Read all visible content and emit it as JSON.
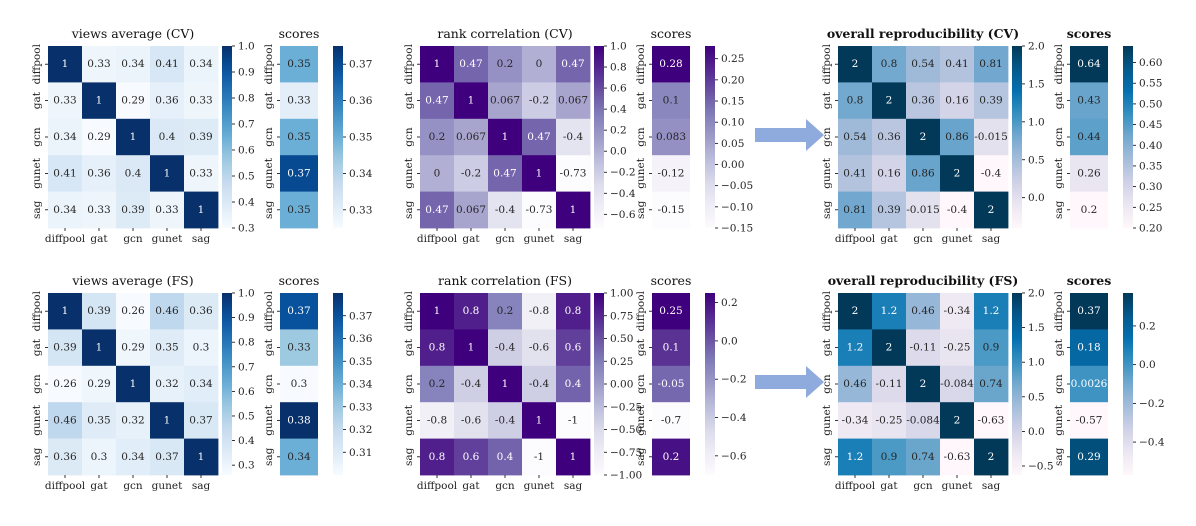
{
  "figure": {
    "models": [
      "diffpool",
      "gat",
      "gcn",
      "gunet",
      "sag"
    ],
    "scores_title": "scores"
  },
  "chart_data": [
    {
      "type": "heatmap",
      "title": "views average (CV)",
      "colormap": "Blues",
      "vmin": 0.3,
      "vmax": 1.0,
      "colorbar_ticks": [
        0.3,
        0.4,
        0.5,
        0.6,
        0.7,
        0.8,
        0.9,
        1.0
      ],
      "colorbar_tick_labels": [
        "0.3",
        "0.4",
        "0.5",
        "0.6",
        "0.7",
        "0.8",
        "0.9",
        "1.0"
      ],
      "x_categories": [
        "diffpool",
        "gat",
        "gcn",
        "gunet",
        "sag"
      ],
      "y_categories": [
        "diffpool",
        "gat",
        "gcn",
        "gunet",
        "sag"
      ],
      "values": [
        [
          1,
          0.33,
          0.34,
          0.41,
          0.34
        ],
        [
          0.33,
          1,
          0.29,
          0.36,
          0.33
        ],
        [
          0.34,
          0.29,
          1,
          0.4,
          0.39
        ],
        [
          0.41,
          0.36,
          0.4,
          1,
          0.33
        ],
        [
          0.34,
          0.33,
          0.39,
          0.33,
          1
        ]
      ],
      "labels": [
        [
          "1",
          "0.33",
          "0.34",
          "0.41",
          "0.34"
        ],
        [
          "0.33",
          "1",
          "0.29",
          "0.36",
          "0.33"
        ],
        [
          "0.34",
          "0.29",
          "1",
          "0.4",
          "0.39"
        ],
        [
          "0.41",
          "0.36",
          "0.4",
          "1",
          "0.33"
        ],
        [
          "0.34",
          "0.33",
          "0.39",
          "0.33",
          "1"
        ]
      ]
    },
    {
      "type": "heatmap",
      "title": "scores",
      "colormap": "Blues",
      "vmin": 0.325,
      "vmax": 0.375,
      "colorbar_ticks": [
        0.33,
        0.34,
        0.35,
        0.36,
        0.37
      ],
      "colorbar_tick_labels": [
        "0.33",
        "0.34",
        "0.35",
        "0.36",
        "0.37"
      ],
      "y_categories": [
        "diffpool",
        "gat",
        "gcn",
        "gunet",
        "sag"
      ],
      "values": [
        0.35,
        0.33,
        0.35,
        0.37,
        0.35
      ],
      "labels": [
        "0.35",
        "0.33",
        "0.35",
        "0.37",
        "0.35"
      ]
    },
    {
      "type": "heatmap",
      "title": "rank correlation (CV)",
      "colormap": "Purples",
      "vmin": -0.73,
      "vmax": 1.0,
      "colorbar_ticks": [
        -0.6,
        -0.4,
        -0.2,
        0.0,
        0.2,
        0.4,
        0.6,
        0.8,
        1.0
      ],
      "colorbar_tick_labels": [
        "−0.6",
        "−0.4",
        "−0.2",
        "0.0",
        "0.2",
        "0.4",
        "0.6",
        "0.8",
        "1.0"
      ],
      "x_categories": [
        "diffpool",
        "gat",
        "gcn",
        "gunet",
        "sag"
      ],
      "y_categories": [
        "diffpool",
        "gat",
        "gcn",
        "gunet",
        "sag"
      ],
      "values": [
        [
          1,
          0.47,
          0.2,
          0,
          0.47
        ],
        [
          0.47,
          1,
          0.067,
          -0.2,
          0.067
        ],
        [
          0.2,
          0.067,
          1,
          0.47,
          -0.4
        ],
        [
          0,
          -0.2,
          0.47,
          1,
          -0.73
        ],
        [
          0.47,
          0.067,
          -0.4,
          -0.73,
          1
        ]
      ],
      "labels": [
        [
          "1",
          "0.47",
          "0.2",
          "0",
          "0.47"
        ],
        [
          "0.47",
          "1",
          "0.067",
          "-0.2",
          "0.067"
        ],
        [
          "0.2",
          "0.067",
          "1",
          "0.47",
          "-0.4"
        ],
        [
          "0",
          "-0.2",
          "0.47",
          "1",
          "-0.73"
        ],
        [
          "0.47",
          "0.067",
          "-0.4",
          "-0.73",
          "1"
        ]
      ]
    },
    {
      "type": "heatmap",
      "title": "scores",
      "colormap": "Purples",
      "vmin": -0.15,
      "vmax": 0.28,
      "colorbar_ticks": [
        -0.15,
        -0.1,
        -0.05,
        0.0,
        0.05,
        0.1,
        0.15,
        0.2,
        0.25
      ],
      "colorbar_tick_labels": [
        "−0.15",
        "−0.10",
        "−0.05",
        "0.00",
        "0.05",
        "0.10",
        "0.15",
        "0.20",
        "0.25"
      ],
      "y_categories": [
        "diffpool",
        "gat",
        "gcn",
        "gunet",
        "sag"
      ],
      "values": [
        0.28,
        0.1,
        0.083,
        -0.12,
        -0.15
      ],
      "labels": [
        "0.28",
        "0.1",
        "0.083",
        "-0.12",
        "-0.15"
      ]
    },
    {
      "type": "heatmap",
      "title": "overall reproducibility (CV)",
      "colormap": "PuBu",
      "vmin": -0.4,
      "vmax": 2.0,
      "colorbar_ticks": [
        0.0,
        0.5,
        1.0,
        1.5,
        2.0
      ],
      "colorbar_tick_labels": [
        "0.0",
        "0.5",
        "1.0",
        "1.5",
        "2.0"
      ],
      "x_categories": [
        "diffpool",
        "gat",
        "gcn",
        "gunet",
        "sag"
      ],
      "y_categories": [
        "diffpool",
        "gat",
        "gcn",
        "gunet",
        "sag"
      ],
      "values": [
        [
          2,
          0.8,
          0.54,
          0.41,
          0.81
        ],
        [
          0.8,
          2,
          0.36,
          0.16,
          0.39
        ],
        [
          0.54,
          0.36,
          2,
          0.86,
          -0.015
        ],
        [
          0.41,
          0.16,
          0.86,
          2,
          -0.4
        ],
        [
          0.81,
          0.39,
          -0.015,
          -0.4,
          2
        ]
      ],
      "labels": [
        [
          "2",
          "0.8",
          "0.54",
          "0.41",
          "0.81"
        ],
        [
          "0.8",
          "2",
          "0.36",
          "0.16",
          "0.39"
        ],
        [
          "0.54",
          "0.36",
          "2",
          "0.86",
          "-0.015"
        ],
        [
          "0.41",
          "0.16",
          "0.86",
          "2",
          "-0.4"
        ],
        [
          "0.81",
          "0.39",
          "-0.015",
          "-0.4",
          "2"
        ]
      ]
    },
    {
      "type": "heatmap",
      "title": "scores",
      "colormap": "PuBu",
      "vmin": 0.2,
      "vmax": 0.64,
      "colorbar_ticks": [
        0.2,
        0.25,
        0.3,
        0.35,
        0.4,
        0.45,
        0.5,
        0.55,
        0.6
      ],
      "colorbar_tick_labels": [
        "0.20",
        "0.25",
        "0.30",
        "0.35",
        "0.40",
        "0.45",
        "0.50",
        "0.55",
        "0.60"
      ],
      "y_categories": [
        "diffpool",
        "gat",
        "gcn",
        "gunet",
        "sag"
      ],
      "values": [
        0.64,
        0.43,
        0.44,
        0.26,
        0.2
      ],
      "labels": [
        "0.64",
        "0.43",
        "0.44",
        "0.26",
        "0.2"
      ]
    },
    {
      "type": "heatmap",
      "title": "views average (FS)",
      "colormap": "Blues",
      "vmin": 0.26,
      "vmax": 1.0,
      "colorbar_ticks": [
        0.3,
        0.4,
        0.5,
        0.6,
        0.7,
        0.8,
        0.9,
        1.0
      ],
      "colorbar_tick_labels": [
        "0.3",
        "0.4",
        "0.5",
        "0.6",
        "0.7",
        "0.8",
        "0.9",
        "1.0"
      ],
      "x_categories": [
        "diffpool",
        "gat",
        "gcn",
        "gunet",
        "sag"
      ],
      "y_categories": [
        "diffpool",
        "gat",
        "gcn",
        "gunet",
        "sag"
      ],
      "values": [
        [
          1,
          0.39,
          0.26,
          0.46,
          0.36
        ],
        [
          0.39,
          1,
          0.29,
          0.35,
          0.3
        ],
        [
          0.26,
          0.29,
          1,
          0.32,
          0.34
        ],
        [
          0.46,
          0.35,
          0.32,
          1,
          0.37
        ],
        [
          0.36,
          0.3,
          0.34,
          0.37,
          1
        ]
      ],
      "labels": [
        [
          "1",
          "0.39",
          "0.26",
          "0.46",
          "0.36"
        ],
        [
          "0.39",
          "1",
          "0.29",
          "0.35",
          "0.3"
        ],
        [
          "0.26",
          "0.29",
          "1",
          "0.32",
          "0.34"
        ],
        [
          "0.46",
          "0.35",
          "0.32",
          "1",
          "0.37"
        ],
        [
          "0.36",
          "0.3",
          "0.34",
          "0.37",
          "1"
        ]
      ]
    },
    {
      "type": "heatmap",
      "title": "scores",
      "colormap": "Blues",
      "vmin": 0.3,
      "vmax": 0.38,
      "colorbar_ticks": [
        0.31,
        0.32,
        0.33,
        0.34,
        0.35,
        0.36,
        0.37
      ],
      "colorbar_tick_labels": [
        "0.31",
        "0.32",
        "0.33",
        "0.34",
        "0.35",
        "0.36",
        "0.37"
      ],
      "y_categories": [
        "diffpool",
        "gat",
        "gcn",
        "gunet",
        "sag"
      ],
      "values": [
        0.37,
        0.33,
        0.3,
        0.38,
        0.34
      ],
      "labels": [
        "0.37",
        "0.33",
        "0.3",
        "0.38",
        "0.34"
      ]
    },
    {
      "type": "heatmap",
      "title": "rank correlation (FS)",
      "colormap": "Purples",
      "vmin": -1.0,
      "vmax": 1.0,
      "colorbar_ticks": [
        -1.0,
        -0.75,
        -0.5,
        -0.25,
        0.0,
        0.25,
        0.5,
        0.75,
        1.0
      ],
      "colorbar_tick_labels": [
        "−1.00",
        "−0.75",
        "−0.50",
        "−0.25",
        "0.00",
        "0.25",
        "0.50",
        "0.75",
        "1.00"
      ],
      "x_categories": [
        "diffpool",
        "gat",
        "gcn",
        "gunet",
        "sag"
      ],
      "y_categories": [
        "diffpool",
        "gat",
        "gcn",
        "gunet",
        "sag"
      ],
      "values": [
        [
          1,
          0.8,
          0.2,
          -0.8,
          0.8
        ],
        [
          0.8,
          1,
          -0.4,
          -0.6,
          0.6
        ],
        [
          0.2,
          -0.4,
          1,
          -0.4,
          0.4
        ],
        [
          -0.8,
          -0.6,
          -0.4,
          1,
          -1
        ],
        [
          0.8,
          0.6,
          0.4,
          -1,
          1
        ]
      ],
      "labels": [
        [
          "1",
          "0.8",
          "0.2",
          "-0.8",
          "0.8"
        ],
        [
          "0.8",
          "1",
          "-0.4",
          "-0.6",
          "0.6"
        ],
        [
          "0.2",
          "-0.4",
          "1",
          "-0.4",
          "0.4"
        ],
        [
          "-0.8",
          "-0.6",
          "-0.4",
          "1",
          "-1"
        ],
        [
          "0.8",
          "0.6",
          "0.4",
          "-1",
          "1"
        ]
      ]
    },
    {
      "type": "heatmap",
      "title": "scores",
      "colormap": "Purples",
      "vmin": -0.7,
      "vmax": 0.25,
      "colorbar_ticks": [
        -0.6,
        -0.4,
        -0.2,
        0.0,
        0.2
      ],
      "colorbar_tick_labels": [
        "−0.6",
        "−0.4",
        "−0.2",
        "0.0",
        "0.2"
      ],
      "y_categories": [
        "diffpool",
        "gat",
        "gcn",
        "gunet",
        "sag"
      ],
      "values": [
        0.25,
        0.1,
        -0.05,
        -0.7,
        0.2
      ],
      "labels": [
        "0.25",
        "0.1",
        "-0.05",
        "-0.7",
        "0.2"
      ]
    },
    {
      "type": "heatmap",
      "title": "overall reproducibility (FS)",
      "colormap": "PuBu",
      "vmin": -0.63,
      "vmax": 2.0,
      "colorbar_ticks": [
        -0.5,
        0.0,
        0.5,
        1.0,
        1.5,
        2.0
      ],
      "colorbar_tick_labels": [
        "−0.5",
        "0.0",
        "0.5",
        "1.0",
        "1.5",
        "2.0"
      ],
      "x_categories": [
        "diffpool",
        "gat",
        "gcn",
        "gunet",
        "sag"
      ],
      "y_categories": [
        "diffpool",
        "gat",
        "gcn",
        "gunet",
        "sag"
      ],
      "values": [
        [
          2,
          1.2,
          0.46,
          -0.34,
          1.2
        ],
        [
          1.2,
          2,
          -0.11,
          -0.25,
          0.9
        ],
        [
          0.46,
          -0.11,
          2,
          -0.084,
          0.74
        ],
        [
          -0.34,
          -0.25,
          -0.084,
          2,
          -0.63
        ],
        [
          1.2,
          0.9,
          0.74,
          -0.63,
          2
        ]
      ],
      "labels": [
        [
          "2",
          "1.2",
          "0.46",
          "-0.34",
          "1.2"
        ],
        [
          "1.2",
          "2",
          "-0.11",
          "-0.25",
          "0.9"
        ],
        [
          "0.46",
          "-0.11",
          "2",
          "-0.084",
          "0.74"
        ],
        [
          "-0.34",
          "-0.25",
          "-0.084",
          "2",
          "-0.63"
        ],
        [
          "1.2",
          "0.9",
          "0.74",
          "-0.63",
          "2"
        ]
      ]
    },
    {
      "type": "heatmap",
      "title": "scores",
      "colormap": "PuBu",
      "vmin": -0.57,
      "vmax": 0.37,
      "colorbar_ticks": [
        -0.4,
        -0.2,
        0.0,
        0.2
      ],
      "colorbar_tick_labels": [
        "−0.4",
        "−0.2",
        "0.0",
        "0.2"
      ],
      "y_categories": [
        "diffpool",
        "gat",
        "gcn",
        "gunet",
        "sag"
      ],
      "values": [
        0.37,
        0.18,
        0.0026,
        -0.57,
        0.29
      ],
      "labels": [
        "0.37",
        "0.18",
        "0.0026",
        "-0.57",
        "0.29"
      ]
    }
  ]
}
